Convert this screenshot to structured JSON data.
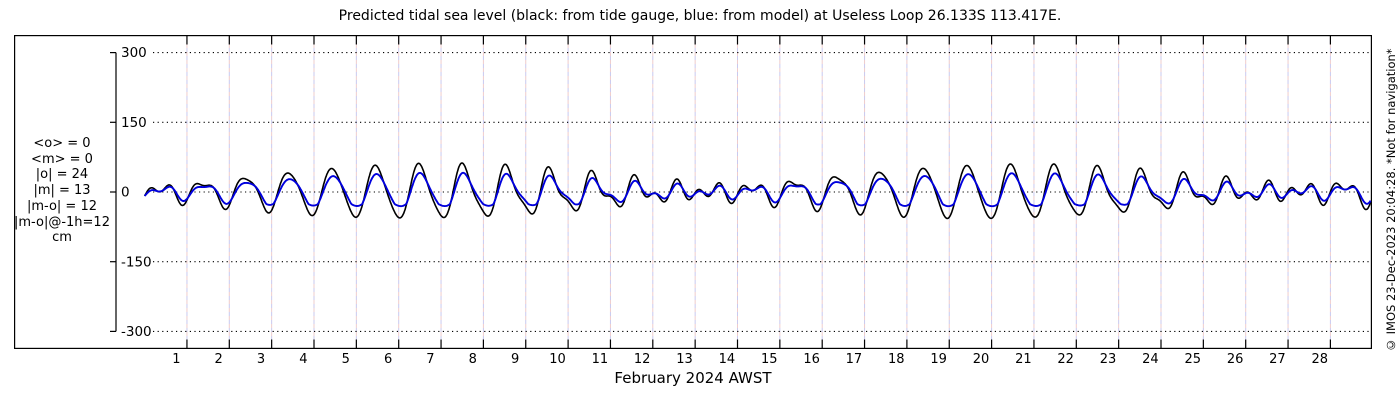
{
  "title": "Predicted tidal sea level (black: from tide gauge, blue: from model) at Useless Loop 26.133S 113.417E.",
  "watermark": "© IMOS 23-Dec-2023 20:04:28. *Not for navigation*",
  "stats_panel": {
    "lines": [
      "<o> = 0",
      "<m> = 0",
      "|o| = 24",
      "|m| = 13",
      "|m-o| = 12",
      "|m-o|@-1h=12",
      "cm"
    ]
  },
  "chart_data": {
    "type": "line",
    "title": "Predicted tidal sea level (black: from tide gauge, blue: from model) at Useless Loop 26.133S 113.417E.",
    "xlabel": "February 2024 AWST",
    "ylabel": "cm",
    "ylim": [
      -300,
      300
    ],
    "yticks": [
      300,
      150,
      0,
      -150,
      -300
    ],
    "x_days": 29,
    "xticks": [
      1,
      2,
      3,
      4,
      5,
      6,
      7,
      8,
      9,
      10,
      11,
      12,
      13,
      14,
      15,
      16,
      17,
      18,
      19,
      20,
      21,
      22,
      23,
      24,
      25,
      26,
      27,
      28
    ],
    "grid": {
      "horizontal": "dotted",
      "vertical": "dashed-per-day"
    },
    "legend_note": "black: from tide gauge, blue: from model",
    "colors": {
      "gauge": "#000000",
      "model": "#0000dd",
      "grid_pink": "#eecccc",
      "grid_lavender": "#c9c9ee",
      "axis": "#000000"
    },
    "sample_step_days": 0.015,
    "series": [
      {
        "name": "from tide gauge",
        "color_key": "gauge",
        "harmonics": [
          {
            "period_h": 23.934,
            "amp_cm": 33,
            "phase_cyc": 0.5177
          },
          {
            "period_h": 25.819,
            "amp_cm": 24,
            "phase_cyc": 0.042
          },
          {
            "period_h": 12.421,
            "amp_cm": 10,
            "phase_cyc": 0.3
          },
          {
            "period_h": 12.0,
            "amp_cm": 5,
            "phase_cyc": 0.1
          }
        ]
      },
      {
        "name": "from model",
        "color_key": "model",
        "harmonics": [
          {
            "period_h": 23.934,
            "amp_cm": 23,
            "phase_cyc": 0.5477
          },
          {
            "period_h": 25.819,
            "amp_cm": 16,
            "phase_cyc": 0.072
          },
          {
            "period_h": 12.421,
            "amp_cm": 6,
            "phase_cyc": 0.33
          },
          {
            "period_h": 12.0,
            "amp_cm": 3,
            "phase_cyc": 0.13
          }
        ],
        "trough_soften": {
          "threshold_cm": -26,
          "factor": 0.35
        }
      }
    ]
  }
}
